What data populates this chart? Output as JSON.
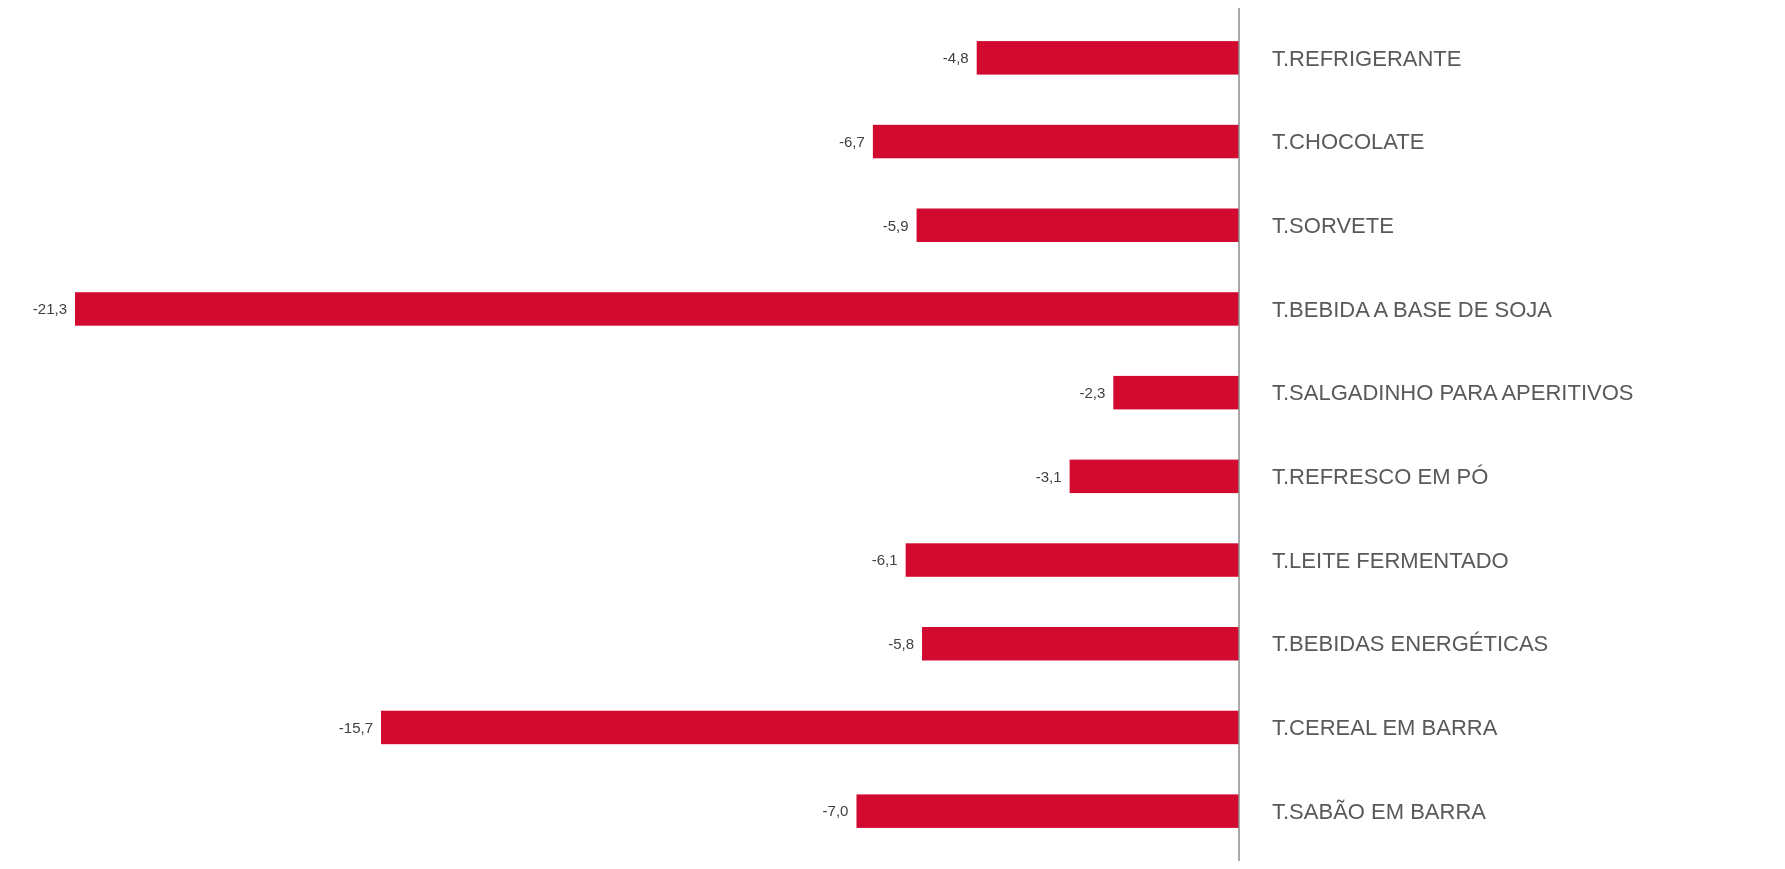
{
  "chart_data": {
    "type": "bar",
    "orientation": "horizontal",
    "categories": [
      "T.REFRIGERANTE",
      "T.CHOCOLATE",
      "T.SORVETE",
      "T.BEBIDA A BASE DE SOJA",
      "T.SALGADINHO PARA APERITIVOS",
      "T.REFRESCO EM PÓ",
      "T.LEITE FERMENTADO",
      "T.BEBIDAS ENERGÉTICAS",
      "T.CEREAL EM BARRA",
      "T.SABÃO EM BARRA"
    ],
    "values": [
      -4.8,
      -6.7,
      -5.9,
      -21.3,
      -2.3,
      -3.1,
      -6.1,
      -5.8,
      -15.7,
      -7.0
    ],
    "value_labels": [
      "-4,8",
      "-6,7",
      "-5,9",
      "-21,3",
      "-2,3",
      "-3,1",
      "-6,1",
      "-5,8",
      "-15,7",
      "-7,0"
    ],
    "color": "#d20a30"
  }
}
